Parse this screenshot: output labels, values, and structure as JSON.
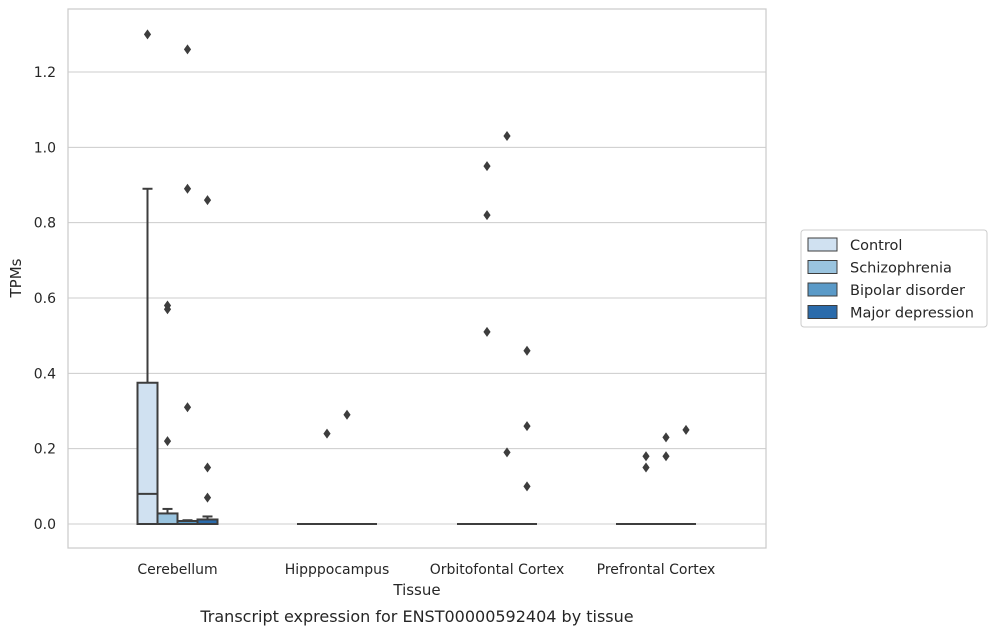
{
  "chart_data": {
    "type": "box",
    "xlabel": "Tissue",
    "ylabel": "TPMs",
    "caption": "Transcript expression for ENST00000592404 by tissue",
    "ylim": [
      -0.065,
      1.38
    ],
    "yticks": [
      "0.0",
      "0.2",
      "0.4",
      "0.6",
      "0.8",
      "1.0",
      "1.2"
    ],
    "ytick_values": [
      0.0,
      0.2,
      0.4,
      0.6,
      0.8,
      1.0,
      1.2
    ],
    "grid": "horizontal",
    "legend_position": "right",
    "categories": [
      "Cerebellum",
      "Hipppocampus",
      "Orbitofontal Cortex",
      "Prefrontal Cortex"
    ],
    "series": [
      {
        "name": "Control",
        "color": "#d0e1f1",
        "boxes": [
          {
            "q1": 0.0,
            "median": 0.08,
            "q3": 0.375,
            "whisker_low": 0.0,
            "whisker_high": 0.89,
            "outliers": [
              1.3
            ]
          },
          {
            "q1": 0.0,
            "median": 0.0,
            "q3": 0.0,
            "whisker_low": 0.0,
            "whisker_high": 0.0,
            "outliers": []
          },
          {
            "q1": 0.0,
            "median": 0.0,
            "q3": 0.0,
            "whisker_low": 0.0,
            "whisker_high": 0.0,
            "outliers": []
          },
          {
            "q1": 0.0,
            "median": 0.0,
            "q3": 0.0,
            "whisker_low": 0.0,
            "whisker_high": 0.0,
            "outliers": []
          }
        ]
      },
      {
        "name": "Schizophrenia",
        "color": "#9ac4df",
        "boxes": [
          {
            "q1": 0.0,
            "median": 0.0,
            "q3": 0.028,
            "whisker_low": 0.0,
            "whisker_high": 0.04,
            "outliers": [
              0.58,
              0.57,
              0.22
            ]
          },
          {
            "q1": 0.0,
            "median": 0.0,
            "q3": 0.0,
            "whisker_low": 0.0,
            "whisker_high": 0.0,
            "outliers": [
              0.24
            ]
          },
          {
            "q1": 0.0,
            "median": 0.0,
            "q3": 0.0,
            "whisker_low": 0.0,
            "whisker_high": 0.0,
            "outliers": [
              0.95,
              0.82,
              0.51
            ]
          },
          {
            "q1": 0.0,
            "median": 0.0,
            "q3": 0.0,
            "whisker_low": 0.0,
            "whisker_high": 0.0,
            "outliers": [
              0.18,
              0.15
            ]
          }
        ]
      },
      {
        "name": "Bipolar disorder",
        "color": "#5a9ac8",
        "boxes": [
          {
            "q1": 0.0,
            "median": 0.0,
            "q3": 0.008,
            "whisker_low": 0.0,
            "whisker_high": 0.01,
            "outliers": [
              1.26,
              0.89,
              0.31
            ]
          },
          {
            "q1": 0.0,
            "median": 0.0,
            "q3": 0.0,
            "whisker_low": 0.0,
            "whisker_high": 0.0,
            "outliers": [
              0.29
            ]
          },
          {
            "q1": 0.0,
            "median": 0.0,
            "q3": 0.0,
            "whisker_low": 0.0,
            "whisker_high": 0.0,
            "outliers": [
              1.03,
              0.19
            ]
          },
          {
            "q1": 0.0,
            "median": 0.0,
            "q3": 0.0,
            "whisker_low": 0.0,
            "whisker_high": 0.0,
            "outliers": [
              0.23,
              0.18
            ]
          }
        ]
      },
      {
        "name": "Major depression",
        "color": "#2a6bab",
        "boxes": [
          {
            "q1": 0.0,
            "median": 0.0,
            "q3": 0.012,
            "whisker_low": 0.0,
            "whisker_high": 0.02,
            "outliers": [
              0.86,
              0.15,
              0.07
            ]
          },
          {
            "q1": 0.0,
            "median": 0.0,
            "q3": 0.0,
            "whisker_low": 0.0,
            "whisker_high": 0.0,
            "outliers": []
          },
          {
            "q1": 0.0,
            "median": 0.0,
            "q3": 0.0,
            "whisker_low": 0.0,
            "whisker_high": 0.0,
            "outliers": [
              0.46,
              0.26,
              0.1
            ]
          },
          {
            "q1": 0.0,
            "median": 0.0,
            "q3": 0.0,
            "whisker_low": 0.0,
            "whisker_high": 0.0,
            "outliers": [
              0.25
            ]
          }
        ]
      }
    ]
  }
}
